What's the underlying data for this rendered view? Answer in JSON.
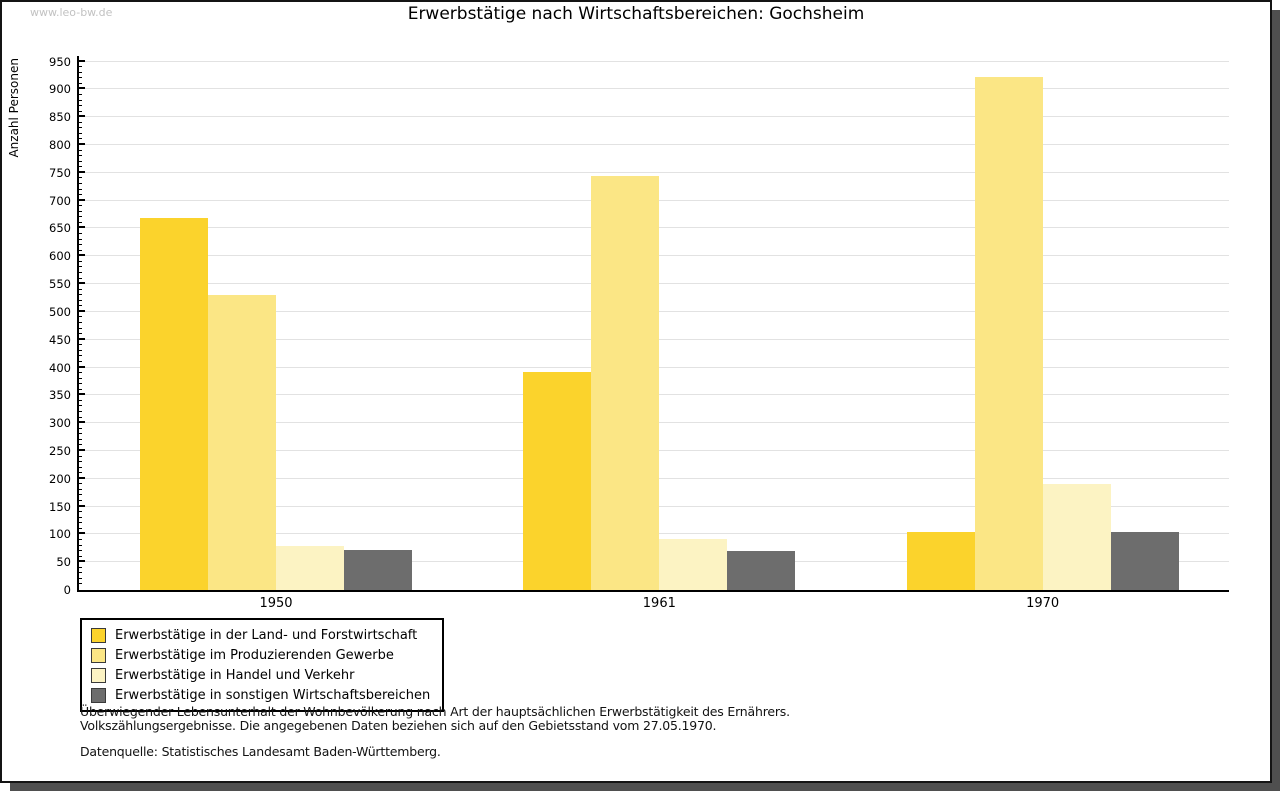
{
  "page": {
    "watermark": "www.leo-bw.de",
    "footnote_line1": "Überwiegender Lebensunterhalt der Wohnbevölkerung nach Art der hauptsächlichen Erwerbstätigkeit des Ernährers.",
    "footnote_line2": "Volkszählungsergebnisse. Die angegebenen Daten beziehen sich auf den Gebietsstand vom 27.05.1970.",
    "source": "Datenquelle: Statistisches Landesamt Baden-Württemberg."
  },
  "chart_data": {
    "type": "bar",
    "title": "Erwerbstätige nach Wirtschaftsbereichen: Gochsheim",
    "xlabel": "",
    "ylabel": "Anzahl Personen",
    "categories": [
      "1950",
      "1961",
      "1970"
    ],
    "series": [
      {
        "name": "Erwerbstätige in der Land- und Forstwirtschaft",
        "color": "#fbd32c",
        "values": [
          668,
          392,
          105
        ]
      },
      {
        "name": "Erwerbstätige im Produzierenden Gewerbe",
        "color": "#fbe685",
        "values": [
          530,
          745,
          922
        ]
      },
      {
        "name": "Erwerbstätige in Handel und Verkehr",
        "color": "#fcf3c3",
        "values": [
          80,
          91,
          191
        ]
      },
      {
        "name": "Erwerbstätige in sonstigen Wirtschaftsbereichen",
        "color": "#6d6d6d",
        "values": [
          72,
          71,
          105
        ]
      }
    ],
    "ylim": [
      0,
      960
    ],
    "ytick_step": 50,
    "ytick_max": 950,
    "minor_tick_step": 10,
    "grid": true,
    "legend_position": "bottom-left",
    "gridline_color": "#e2e2e2",
    "axis_color": "#000000"
  }
}
